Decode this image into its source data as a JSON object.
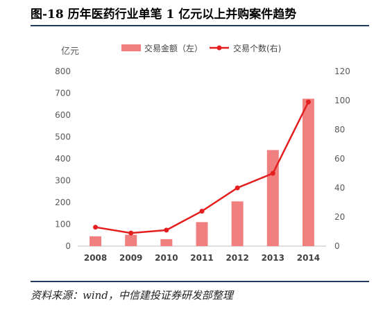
{
  "header": {
    "title": "图-18 历年医药行业单笔 1 亿元以上并购案件趋势"
  },
  "footer": {
    "source": "资料来源：wind，中信建投证券研发部整理"
  },
  "chart_data": {
    "type": "bar+line",
    "categories": [
      "2008",
      "2009",
      "2010",
      "2011",
      "2012",
      "2013",
      "2014"
    ],
    "series": [
      {
        "name": "交易金额（左）",
        "type": "bar",
        "axis": "left",
        "color": "#f08080",
        "values": [
          45,
          52,
          32,
          110,
          205,
          440,
          675
        ]
      },
      {
        "name": "交易个数(右)",
        "type": "line",
        "axis": "right",
        "color": "#e41e1e",
        "values": [
          13,
          9,
          11,
          24,
          40,
          50,
          99
        ]
      }
    ],
    "y_left": {
      "unit": "亿元",
      "lim": [
        0,
        800
      ],
      "ticks": [
        "0",
        "100",
        "200",
        "300",
        "400",
        "500",
        "600",
        "700",
        "800"
      ]
    },
    "y_right": {
      "lim": [
        0,
        120
      ],
      "ticks": [
        "0",
        "20",
        "40",
        "60",
        "80",
        "100",
        "120"
      ]
    },
    "grid": false,
    "legend": "top"
  }
}
